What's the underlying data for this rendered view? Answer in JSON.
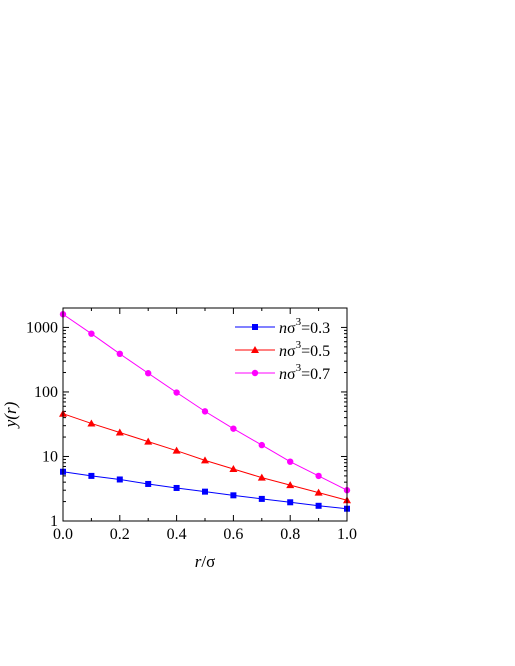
{
  "chart_data": {
    "type": "line",
    "xlabel_var": "r",
    "xlabel_sep": "/",
    "xlabel_unit": "σ",
    "ylabel_var": "y",
    "ylabel_arg": "(r)",
    "xlim": [
      0.0,
      1.0
    ],
    "ylim": [
      1,
      2000
    ],
    "yscale": "log",
    "grid": false,
    "legend_position": "top-right",
    "x_ticks": [
      0.0,
      0.2,
      0.4,
      0.6,
      0.8,
      1.0
    ],
    "x_tick_labels": [
      "0.0",
      "0.2",
      "0.4",
      "0.6",
      "0.8",
      "1.0"
    ],
    "y_ticks": [
      1,
      10,
      100,
      1000
    ],
    "y_tick_labels": [
      "1",
      "10",
      "100",
      "1000"
    ],
    "x": [
      0.0,
      0.1,
      0.2,
      0.3,
      0.4,
      0.5,
      0.6,
      0.7,
      0.8,
      0.9,
      1.0
    ],
    "series": [
      {
        "legend_n": "n",
        "legend_sigma": "σ",
        "legend_exp": "3",
        "legend_value": "=0.3",
        "color": "#0000ff",
        "marker": "square",
        "values": [
          5.8,
          5.0,
          4.4,
          3.75,
          3.25,
          2.85,
          2.5,
          2.2,
          1.95,
          1.72,
          1.55
        ]
      },
      {
        "legend_n": "n",
        "legend_sigma": "σ",
        "legend_exp": "3",
        "legend_value": "=0.5",
        "color": "#ff0000",
        "marker": "triangle",
        "values": [
          46,
          32.5,
          23.5,
          17,
          12.3,
          8.7,
          6.4,
          4.7,
          3.6,
          2.75,
          2.1
        ]
      },
      {
        "legend_n": "n",
        "legend_sigma": "σ",
        "legend_exp": "3",
        "legend_value": "=0.7",
        "color": "#ff00ff",
        "marker": "circle",
        "values": [
          1600,
          800,
          390,
          195,
          98,
          50,
          27,
          15,
          8.3,
          5.0,
          3.0
        ]
      }
    ]
  }
}
